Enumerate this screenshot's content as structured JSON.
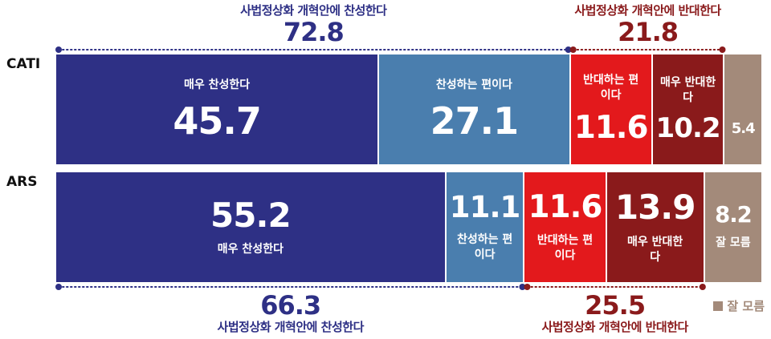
{
  "chart_data": {
    "type": "bar",
    "orientation": "horizontal",
    "stacked": true,
    "categories": [
      "CATI",
      "ARS"
    ],
    "series": [
      {
        "name": "매우 찬성한다",
        "color": "#2e3085",
        "values": [
          45.7,
          55.2
        ]
      },
      {
        "name": "찬성하는 편이다",
        "color": "#4a7eae",
        "values": [
          27.1,
          11.1
        ]
      },
      {
        "name": "반대하는 편이다",
        "color": "#e3191c",
        "values": [
          11.6,
          11.6
        ]
      },
      {
        "name": "매우 반대한다",
        "color": "#8a1a1b",
        "values": [
          10.2,
          13.9
        ]
      },
      {
        "name": "잘 모름",
        "color": "#a38a7a",
        "values": [
          5.4,
          8.2
        ]
      }
    ],
    "xlim": [
      0,
      100
    ],
    "annotations": [
      {
        "category": "CATI",
        "text": "사법정상화 개혁안에 찬성한다",
        "value": 72.8,
        "color": "#2e3085"
      },
      {
        "category": "CATI",
        "text": "사법정상화 개혁안에 반대한다",
        "value": 21.8,
        "color": "#8a1a1b"
      },
      {
        "category": "ARS",
        "text": "사법정상화 개혁안에 찬성한다",
        "value": 66.3,
        "color": "#2e3085"
      },
      {
        "category": "ARS",
        "text": "사법정상화 개혁안에 반대한다",
        "value": 25.5,
        "color": "#8a1a1b"
      }
    ],
    "legend": "bottom-right"
  }
}
